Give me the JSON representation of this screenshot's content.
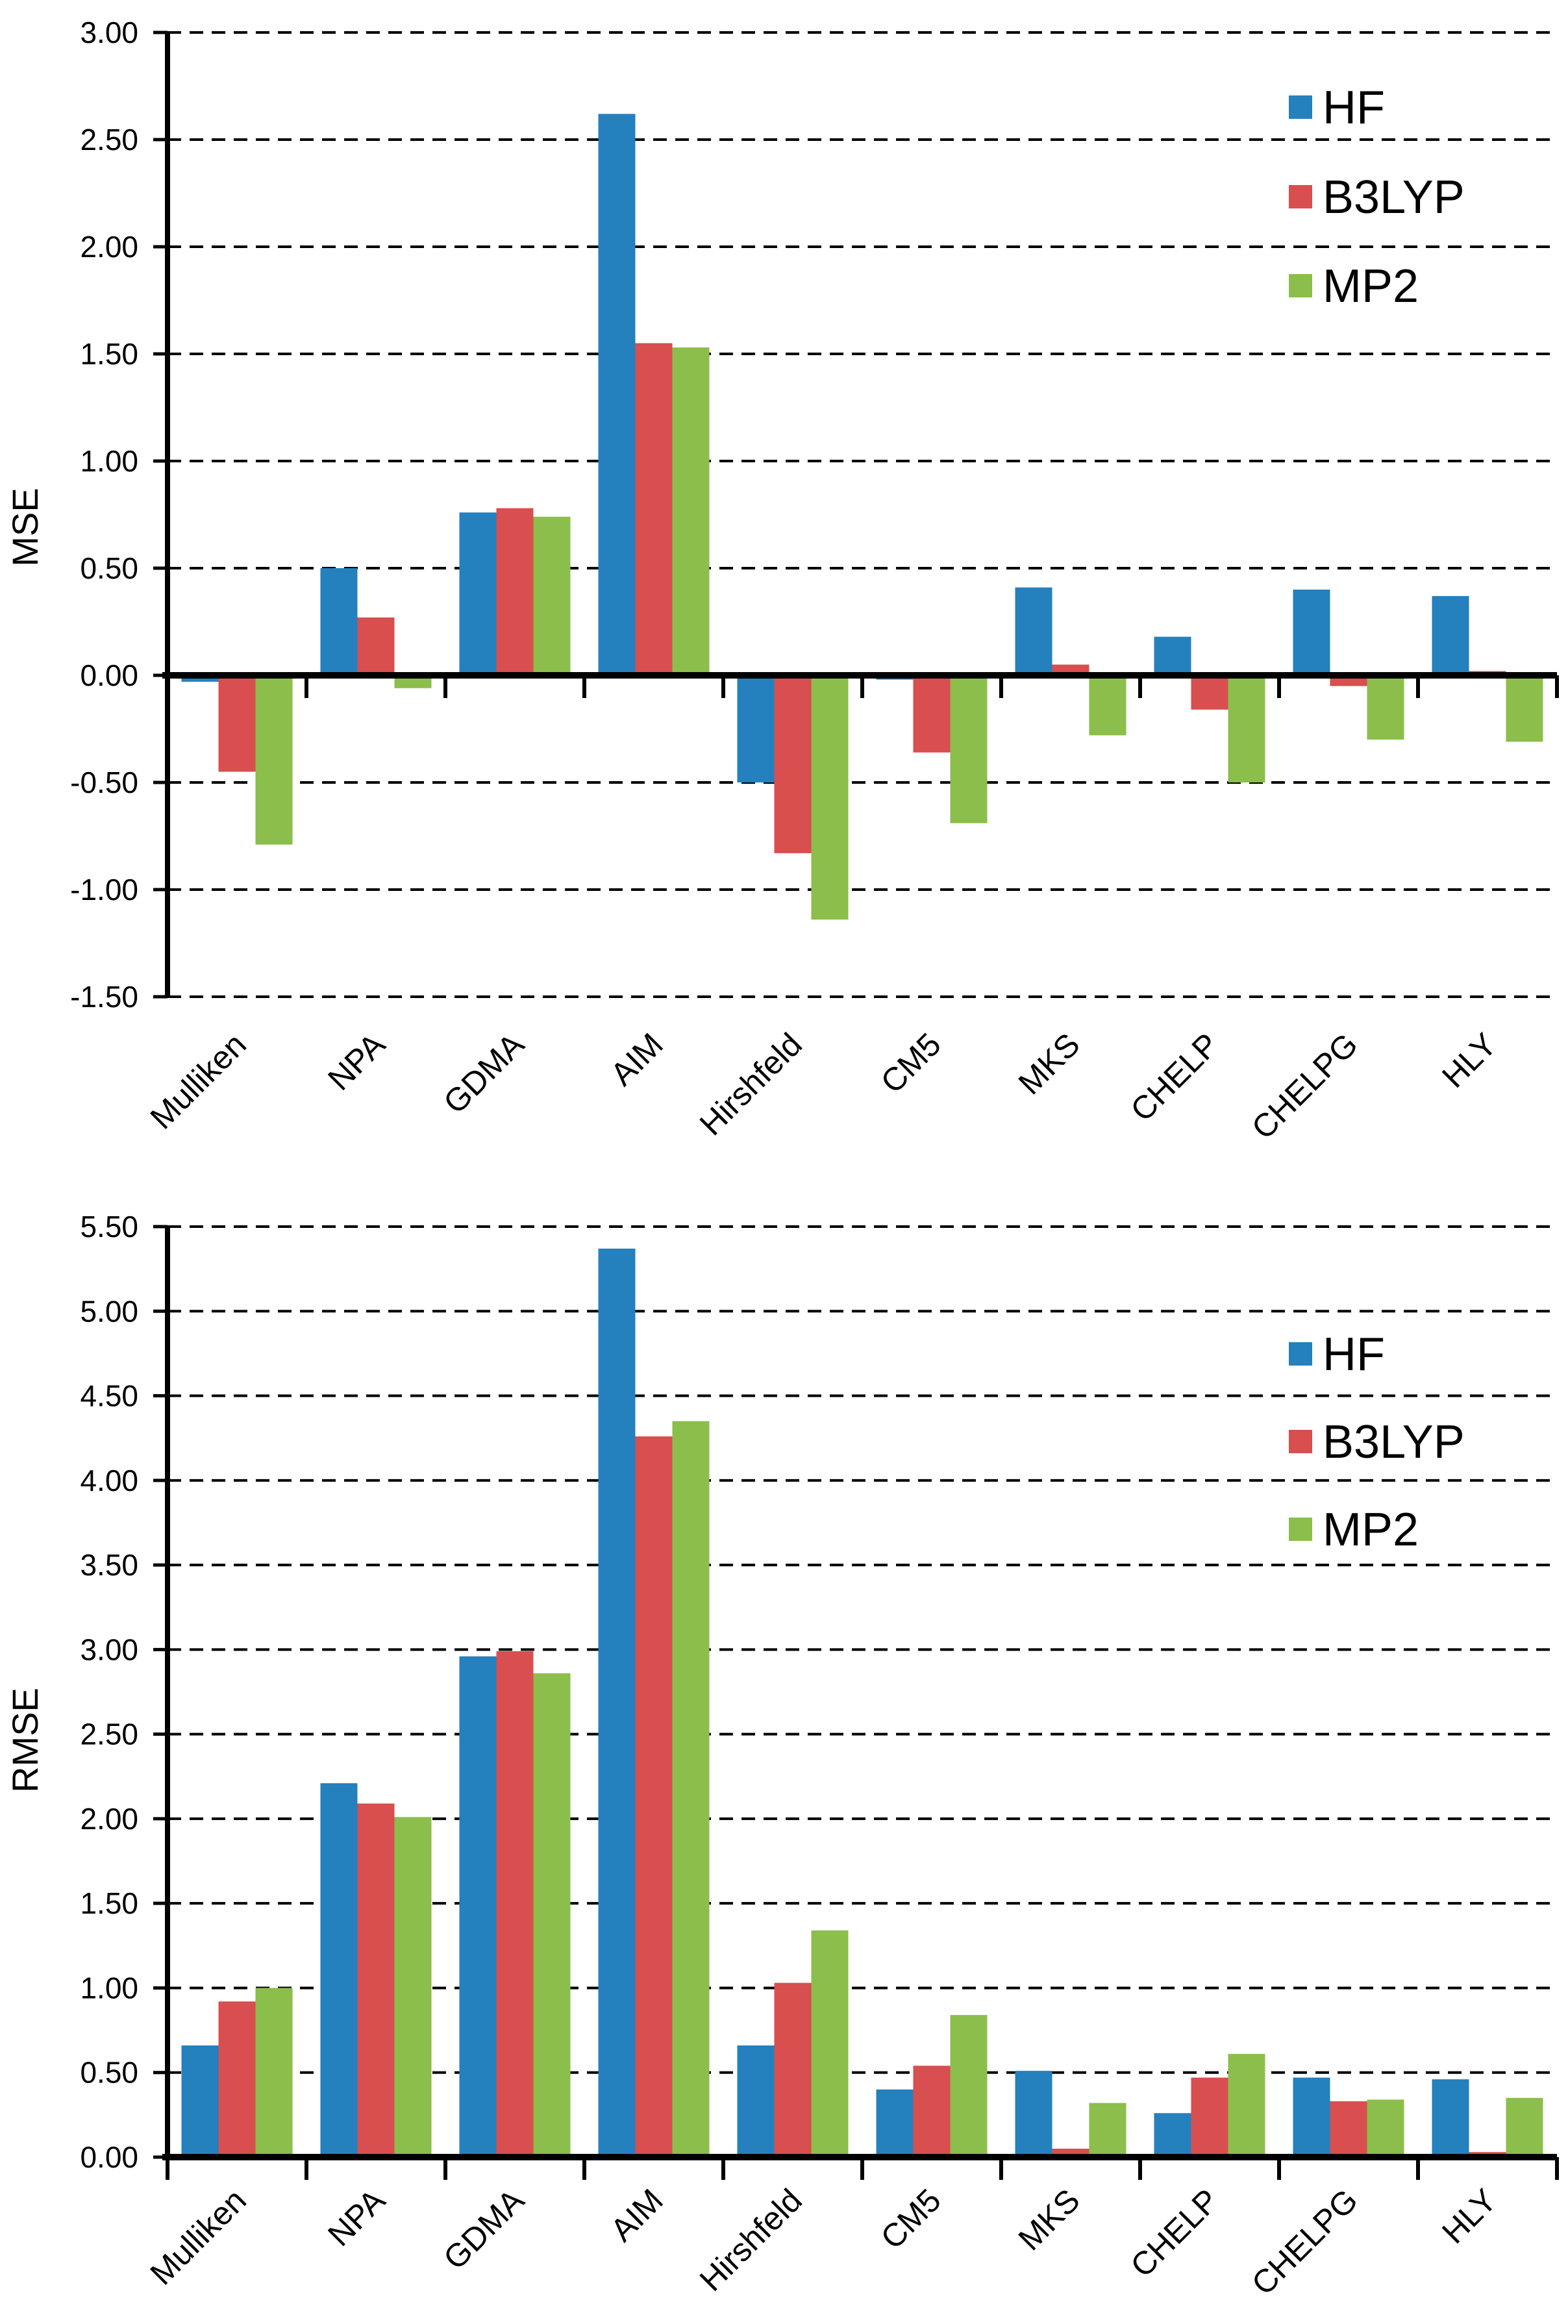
{
  "figure": {
    "background": "#ffffff"
  },
  "colors": {
    "HF": "#2580BE",
    "B3LYP": "#D94E4E",
    "MP2": "#8CBE4B",
    "axis": "#000000",
    "grid": "#000000"
  },
  "legend": {
    "items": [
      {
        "label": "HF"
      },
      {
        "label": "B3LYP"
      },
      {
        "label": "MP2"
      }
    ]
  },
  "chart_data": [
    {
      "type": "bar",
      "title": "",
      "ylabel": "MSE",
      "xlabel": "",
      "categories": [
        "Mulliken",
        "NPA",
        "GDMA",
        "AIM",
        "Hirshfeld",
        "CM5",
        "MKS",
        "CHELP",
        "CHELPG",
        "HLY"
      ],
      "series": [
        {
          "name": "HF",
          "values": [
            -0.03,
            0.5,
            0.76,
            2.62,
            -0.5,
            -0.02,
            0.41,
            0.18,
            0.4,
            0.37
          ]
        },
        {
          "name": "B3LYP",
          "values": [
            -0.45,
            0.27,
            0.78,
            1.55,
            -0.83,
            -0.36,
            0.05,
            -0.16,
            -0.05,
            0.02
          ]
        },
        {
          "name": "MP2",
          "values": [
            -0.79,
            -0.06,
            0.74,
            1.53,
            -1.14,
            -0.69,
            -0.28,
            -0.5,
            -0.3,
            -0.31
          ]
        }
      ],
      "ylim": [
        -1.5,
        3.0
      ],
      "ytick_step": 0.5,
      "ytick_labels": [
        "3.00",
        "2.50",
        "2.00",
        "1.50",
        "1.00",
        "0.50",
        "0.00",
        "-0.50",
        "-1.00",
        "-1.50"
      ],
      "grid": "dashed-horizontal",
      "zero_axis": "solid-bold",
      "legend_position": "top-right"
    },
    {
      "type": "bar",
      "title": "",
      "ylabel": "RMSE",
      "xlabel": "",
      "categories": [
        "Mulliken",
        "NPA",
        "GDMA",
        "AIM",
        "Hirshfeld",
        "CM5",
        "MKS",
        "CHELP",
        "CHELPG",
        "HLY"
      ],
      "series": [
        {
          "name": "HF",
          "values": [
            0.66,
            2.21,
            2.96,
            5.37,
            0.66,
            0.4,
            0.51,
            0.26,
            0.47,
            0.46
          ]
        },
        {
          "name": "B3LYP",
          "values": [
            0.92,
            2.09,
            2.99,
            4.26,
            1.03,
            0.54,
            0.05,
            0.47,
            0.33,
            0.03
          ]
        },
        {
          "name": "MP2",
          "values": [
            1.0,
            2.01,
            2.86,
            4.35,
            1.34,
            0.84,
            0.32,
            0.61,
            0.34,
            0.35
          ]
        }
      ],
      "ylim": [
        0.0,
        5.5
      ],
      "ytick_step": 0.5,
      "ytick_labels": [
        "5.50",
        "5.00",
        "4.50",
        "4.00",
        "3.50",
        "3.00",
        "2.50",
        "2.00",
        "1.50",
        "1.00",
        "0.50",
        "0.00"
      ],
      "grid": "dashed-horizontal",
      "zero_axis": "solid-bold",
      "legend_position": "top-right"
    }
  ]
}
